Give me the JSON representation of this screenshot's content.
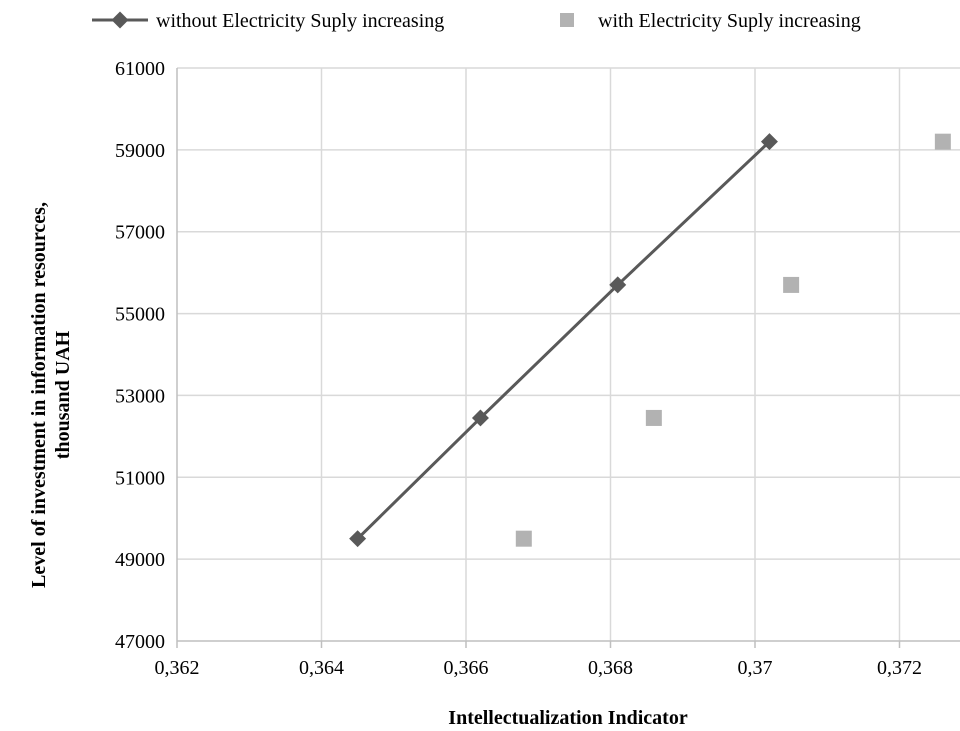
{
  "chart_data": {
    "type": "scatter",
    "xlabel": "Intellectualization Indicator",
    "ylabel_lines": [
      "Level of investment in information resources,",
      "thousand UAH"
    ],
    "xlim": [
      0.362,
      0.373
    ],
    "ylim": [
      47000,
      61000
    ],
    "x_ticks": [
      0.362,
      0.364,
      0.366,
      0.368,
      0.37,
      0.372
    ],
    "x_tick_labels": [
      "0,362",
      "0,364",
      "0,366",
      "0,368",
      "0,37",
      "0,372"
    ],
    "y_ticks": [
      47000,
      49000,
      51000,
      53000,
      55000,
      57000,
      59000,
      61000
    ],
    "y_tick_labels": [
      "47000",
      "49000",
      "51000",
      "53000",
      "55000",
      "57000",
      "59000",
      "61000"
    ],
    "grid": true,
    "legend_position": "top",
    "series": [
      {
        "name": "without Electricity Suply increasing",
        "style": "line-diamond",
        "color": "#595959",
        "points": [
          {
            "x": 0.3645,
            "y": 49500
          },
          {
            "x": 0.3662,
            "y": 52450
          },
          {
            "x": 0.3681,
            "y": 55700
          },
          {
            "x": 0.3702,
            "y": 59200
          }
        ]
      },
      {
        "name": "with Electricity Suply increasing",
        "style": "square",
        "color": "#b2b2b2",
        "points": [
          {
            "x": 0.3668,
            "y": 49500
          },
          {
            "x": 0.3686,
            "y": 52450
          },
          {
            "x": 0.3705,
            "y": 55700
          },
          {
            "x": 0.3726,
            "y": 59200
          }
        ]
      }
    ]
  }
}
